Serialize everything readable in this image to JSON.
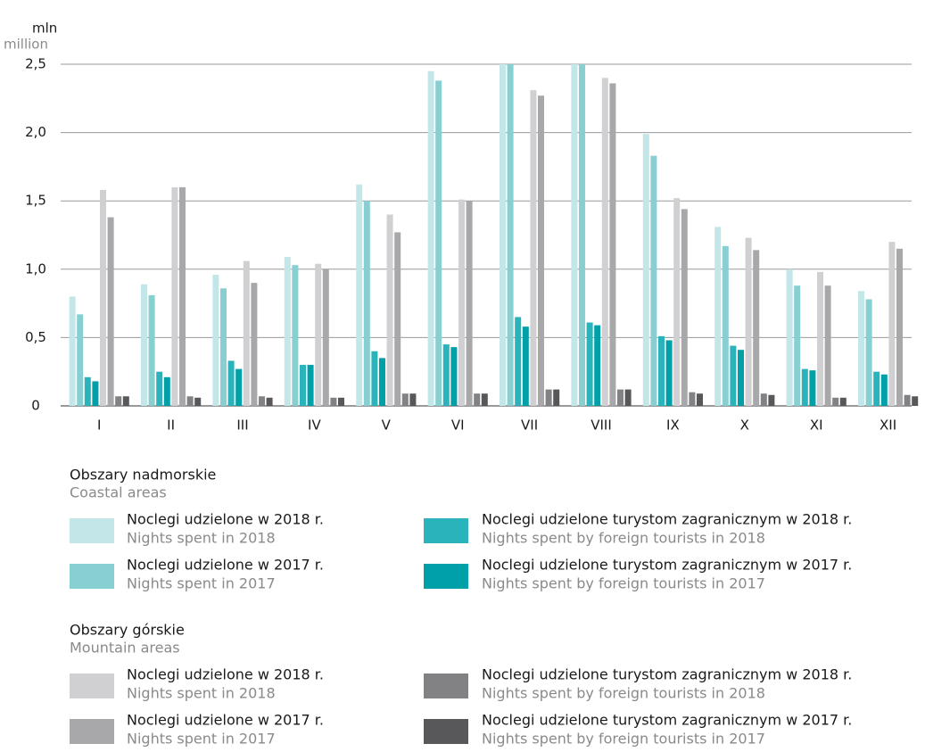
{
  "chart_data": {
    "type": "bar",
    "ylabel": "mln",
    "ylabel_en": "million",
    "categories": [
      "I",
      "II",
      "III",
      "IV",
      "V",
      "VI",
      "VII",
      "VIII",
      "IX",
      "X",
      "XI",
      "XII"
    ],
    "ylim": [
      0,
      2.5
    ],
    "yticks": [
      0,
      {
        "value": 0.5,
        "label": "0,5"
      },
      {
        "value": 1,
        "label": "1,0"
      },
      {
        "value": 1.5,
        "label": "1,5"
      },
      {
        "value": 2,
        "label": "2,0"
      },
      {
        "value": 2.5,
        "label": "2,5"
      }
    ],
    "grid": true,
    "legend_groups": [
      {
        "title": "Obszary nadmorskie",
        "subtitle": "Coastal areas"
      },
      {
        "title": "Obszary górskie",
        "subtitle": "Mountain areas"
      }
    ],
    "series": [
      {
        "name": "Noclegi udzielone w 2018 r.",
        "name_en": "Nights spent in 2018",
        "color": "#c3e6e8",
        "values": [
          0.8,
          0.89,
          0.96,
          1.09,
          1.62,
          2.45,
          2.5,
          2.5,
          1.99,
          1.31,
          1.0,
          0.84
        ]
      },
      {
        "name": "Noclegi udzielone w 2017 r.",
        "name_en": "Nights spent in 2017",
        "color": "#88cfd2",
        "values": [
          0.67,
          0.81,
          0.86,
          1.03,
          1.5,
          2.38,
          2.5,
          2.5,
          1.83,
          1.17,
          0.88,
          0.78
        ]
      },
      {
        "name": "Noclegi udzielone turystom zagranicznym w 2018 r.",
        "name_en": "Nights spent by foreign tourists in 2018",
        "color": "#2ab3bb",
        "values": [
          0.21,
          0.25,
          0.33,
          0.3,
          0.4,
          0.45,
          0.65,
          0.61,
          0.51,
          0.44,
          0.27,
          0.25
        ]
      },
      {
        "name": "Noclegi udzielone turystom zagranicznym w 2017 r.",
        "name_en": "Nights spent by foreign tourists in 2017",
        "color": "#00a0a8",
        "values": [
          0.18,
          0.21,
          0.27,
          0.3,
          0.35,
          0.43,
          0.58,
          0.59,
          0.48,
          0.41,
          0.26,
          0.23
        ]
      },
      {
        "name": "Noclegi udzielone w 2018 r.",
        "name_en": "Nights spent in 2018",
        "color": "#d0d0d2",
        "values": [
          1.58,
          1.6,
          1.06,
          1.04,
          1.4,
          1.51,
          2.31,
          2.4,
          1.52,
          1.23,
          0.98,
          1.2
        ]
      },
      {
        "name": "Noclegi udzielone w 2017 r.",
        "name_en": "Nights spent in 2017",
        "color": "#a8a8ab",
        "values": [
          1.38,
          1.6,
          0.9,
          1.0,
          1.27,
          1.5,
          2.27,
          2.36,
          1.44,
          1.14,
          0.88,
          1.15
        ]
      },
      {
        "name": "Noclegi udzielone turystom zagranicznym w 2018 r.",
        "name_en": "Nights spent by foreign tourists in 2018",
        "color": "#828285",
        "values": [
          0.07,
          0.07,
          0.07,
          0.06,
          0.09,
          0.09,
          0.12,
          0.12,
          0.1,
          0.09,
          0.06,
          0.08
        ]
      },
      {
        "name": "Noclegi udzielone turystom zagranicznym w 2017 r.",
        "name_en": "Nights spent by foreign tourists in 2017",
        "color": "#58585a",
        "values": [
          0.07,
          0.06,
          0.06,
          0.06,
          0.09,
          0.09,
          0.12,
          0.12,
          0.09,
          0.08,
          0.06,
          0.07
        ]
      }
    ]
  }
}
